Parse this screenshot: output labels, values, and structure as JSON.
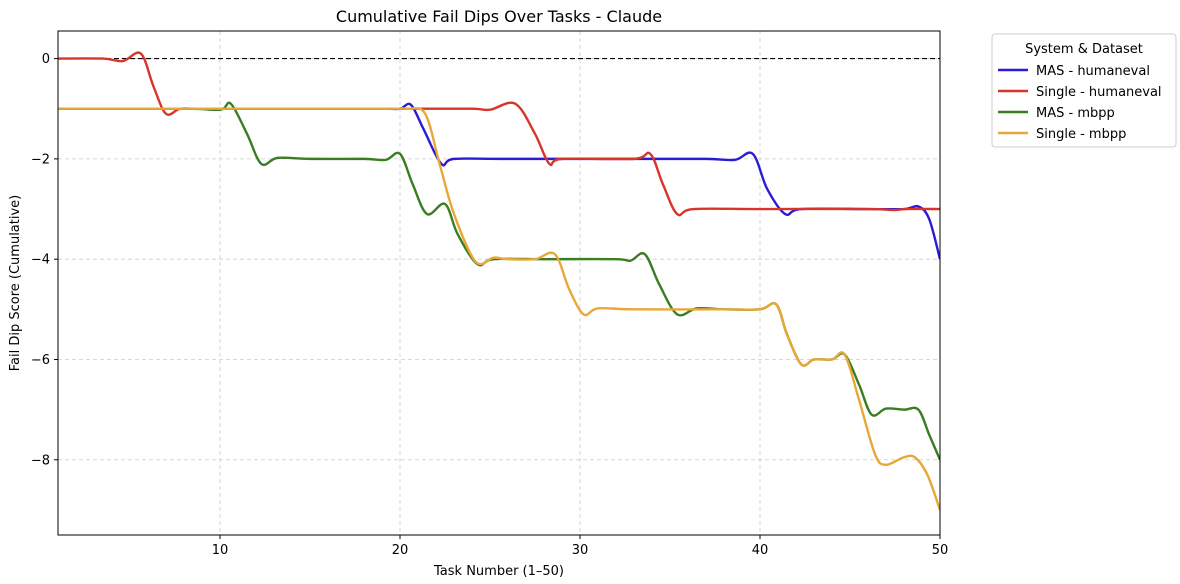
{
  "chart_data": {
    "type": "line",
    "title": "Cumulative Fail Dips Over Tasks - Claude",
    "xlabel": "Task Number (1–50)",
    "ylabel": "Fail Dip Score (Cumulative)",
    "xlim": [
      1,
      50
    ],
    "ylim": [
      -9.5,
      0.55
    ],
    "xticks": [
      10,
      20,
      30,
      40,
      50
    ],
    "yticks": [
      0,
      -2,
      -4,
      -6,
      -8
    ],
    "grid": true,
    "reference_line": {
      "y": 0,
      "style": "dashed",
      "color": "#000000"
    },
    "legend": {
      "title": "System & Dataset",
      "placement": "outside-right-top"
    },
    "series": [
      {
        "name": "MAS - humaneval",
        "color": "#2b1bd6",
        "points": [
          [
            1,
            -1
          ],
          [
            8,
            -1
          ],
          [
            15,
            -1
          ],
          [
            19,
            -1
          ],
          [
            20,
            -1
          ],
          [
            20.6,
            -0.92
          ],
          [
            21.3,
            -1.4
          ],
          [
            22.3,
            -2.1
          ],
          [
            23,
            -2
          ],
          [
            26,
            -2
          ],
          [
            33,
            -2
          ],
          [
            37,
            -2
          ],
          [
            38.6,
            -2.02
          ],
          [
            39.6,
            -1.9
          ],
          [
            40.4,
            -2.6
          ],
          [
            41.4,
            -3.1
          ],
          [
            42.3,
            -3
          ],
          [
            46,
            -3
          ],
          [
            48,
            -3
          ],
          [
            48.8,
            -2.95
          ],
          [
            49.4,
            -3.2
          ],
          [
            50,
            -4
          ]
        ]
      },
      {
        "name": "Single - humaneval",
        "color": "#d8352a",
        "points": [
          [
            1,
            0
          ],
          [
            3.5,
            0
          ],
          [
            4.6,
            -0.05
          ],
          [
            5.6,
            0.1
          ],
          [
            6.3,
            -0.55
          ],
          [
            7,
            -1.1
          ],
          [
            7.8,
            -1
          ],
          [
            9,
            -1
          ],
          [
            15,
            -1
          ],
          [
            20,
            -1
          ],
          [
            21,
            -1
          ],
          [
            24,
            -1
          ],
          [
            25,
            -1.02
          ],
          [
            26.4,
            -0.9
          ],
          [
            27.5,
            -1.5
          ],
          [
            28.3,
            -2.1
          ],
          [
            29,
            -2
          ],
          [
            33,
            -2
          ],
          [
            33.9,
            -1.9
          ],
          [
            34.6,
            -2.5
          ],
          [
            35.4,
            -3.1
          ],
          [
            36.3,
            -3
          ],
          [
            40,
            -3
          ],
          [
            46,
            -3
          ],
          [
            47.4,
            -3.02
          ],
          [
            48.2,
            -3
          ],
          [
            50,
            -3
          ]
        ]
      },
      {
        "name": "MAS - mbpp",
        "color": "#3a7d22",
        "points": [
          [
            1,
            -1
          ],
          [
            8,
            -1
          ],
          [
            10,
            -1.02
          ],
          [
            10.6,
            -0.9
          ],
          [
            11.5,
            -1.5
          ],
          [
            12.3,
            -2.1
          ],
          [
            13.2,
            -1.98
          ],
          [
            15,
            -2
          ],
          [
            18,
            -2
          ],
          [
            19.2,
            -2.02
          ],
          [
            20,
            -1.9
          ],
          [
            20.7,
            -2.5
          ],
          [
            21.5,
            -3.1
          ],
          [
            22.5,
            -2.9
          ],
          [
            23.2,
            -3.5
          ],
          [
            24.3,
            -4.1
          ],
          [
            25.2,
            -4
          ],
          [
            28,
            -4
          ],
          [
            32,
            -4
          ],
          [
            32.8,
            -4.03
          ],
          [
            33.6,
            -3.9
          ],
          [
            34.4,
            -4.5
          ],
          [
            35.4,
            -5.1
          ],
          [
            36.5,
            -4.98
          ],
          [
            38,
            -5
          ],
          [
            40,
            -5
          ],
          [
            40.9,
            -4.9
          ],
          [
            41.5,
            -5.5
          ],
          [
            42.3,
            -6.1
          ],
          [
            43,
            -6
          ],
          [
            44,
            -6
          ],
          [
            44.7,
            -5.9
          ],
          [
            45.5,
            -6.5
          ],
          [
            46.2,
            -7.1
          ],
          [
            47,
            -6.98
          ],
          [
            48,
            -7
          ],
          [
            48.8,
            -7
          ],
          [
            49.4,
            -7.5
          ],
          [
            50,
            -8
          ]
        ]
      },
      {
        "name": "Single - mbpp",
        "color": "#e8a838",
        "points": [
          [
            1,
            -1
          ],
          [
            8,
            -1
          ],
          [
            15,
            -1
          ],
          [
            19.5,
            -1
          ],
          [
            20.4,
            -1
          ],
          [
            21.4,
            -1.1
          ],
          [
            22.2,
            -2.1
          ],
          [
            23,
            -3.1
          ],
          [
            24.2,
            -4.05
          ],
          [
            25.2,
            -3.97
          ],
          [
            26,
            -4
          ],
          [
            27.5,
            -4
          ],
          [
            28.6,
            -3.9
          ],
          [
            29.4,
            -4.6
          ],
          [
            30.2,
            -5.1
          ],
          [
            31,
            -4.98
          ],
          [
            33,
            -5
          ],
          [
            38,
            -5
          ],
          [
            40,
            -5
          ],
          [
            40.9,
            -4.9
          ],
          [
            41.5,
            -5.5
          ],
          [
            42.3,
            -6.1
          ],
          [
            43,
            -6
          ],
          [
            44,
            -6
          ],
          [
            44.7,
            -5.9
          ],
          [
            45.5,
            -6.8
          ],
          [
            46.4,
            -7.9
          ],
          [
            47,
            -8.1
          ],
          [
            48,
            -7.95
          ],
          [
            48.6,
            -7.95
          ],
          [
            49.3,
            -8.3
          ],
          [
            50,
            -9
          ]
        ]
      }
    ]
  }
}
